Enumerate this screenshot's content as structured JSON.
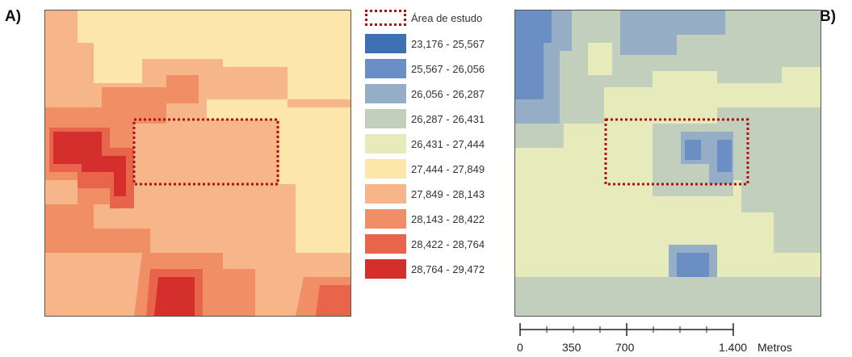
{
  "panels": [
    {
      "label": "A)"
    },
    {
      "label": "B)"
    }
  ],
  "legend": {
    "study_area_label": "Área de estudo",
    "study_area_color": "#b01010",
    "classes": [
      {
        "range": "23,176 - 25,567",
        "color_a": "#3f71b2",
        "color_b": "#3f71b2"
      },
      {
        "range": "25,567 - 26,056",
        "color_a": "#6b8fc4",
        "color_b": "#6b8fc4"
      },
      {
        "range": "26,056 - 26,287",
        "color_a": "#95aec6",
        "color_b": "#95aec6"
      },
      {
        "range": "26,287 - 26,431",
        "color_a": "#c1cfbc",
        "color_b": "#c1cfbc"
      },
      {
        "range": "26,431 - 27,444",
        "color_a": "#e7ebbb",
        "color_b": "#e7ebbb"
      },
      {
        "range": "27,444 - 27,849",
        "color_a": "#fce6a9",
        "color_b": "#fce6a9"
      },
      {
        "range": "27,849 - 28,143",
        "color_a": "#f7b58a",
        "color_b": "#f7b58a"
      },
      {
        "range": "28,143 - 28,422",
        "color_a": "#f08e66",
        "color_b": "#f08e66"
      },
      {
        "range": "28,422 - 28,764",
        "color_a": "#e8644b",
        "color_b": "#e8644b"
      },
      {
        "range": "28,764 - 29,472",
        "color_a": "#d42f2c",
        "color_b": "#d42f2c"
      }
    ]
  },
  "scale_bar": {
    "ticks": [
      "0",
      "350",
      "700",
      "1.400"
    ],
    "unit": "Metros"
  }
}
